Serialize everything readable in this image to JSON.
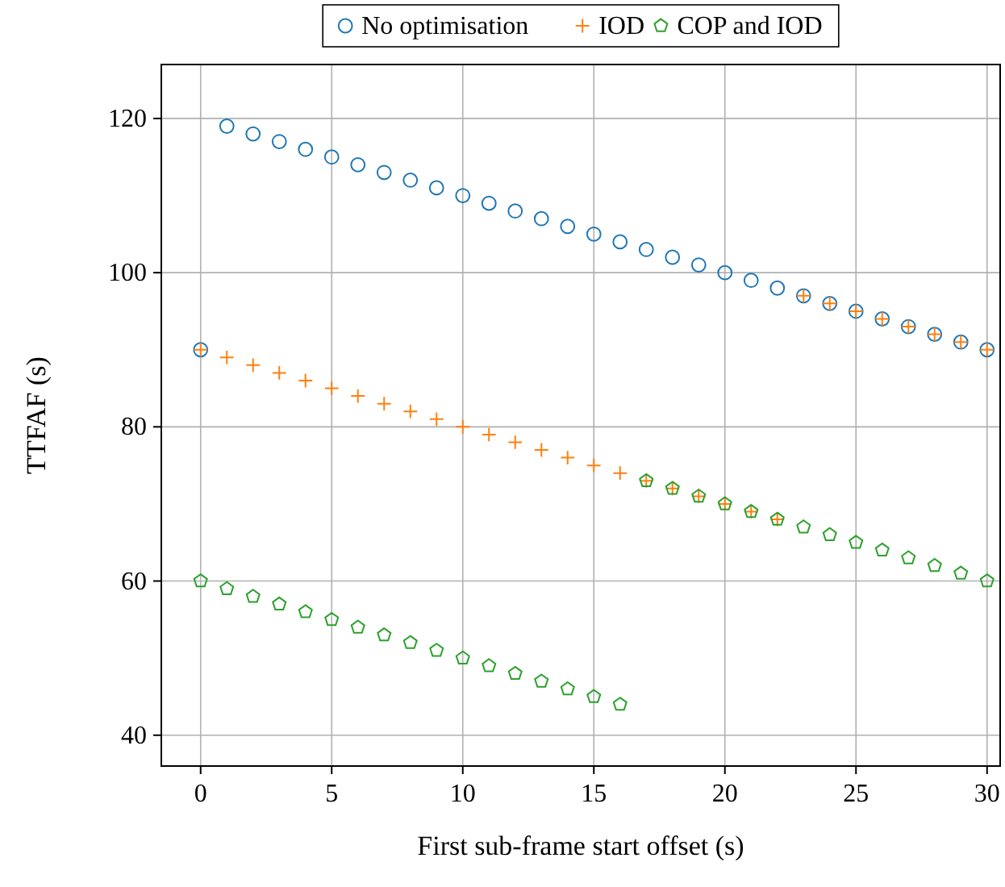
{
  "chart_data": {
    "type": "scatter",
    "xlabel": "First sub-frame start offset (s)",
    "ylabel": "TTFAF (s)",
    "x": [
      0,
      1,
      2,
      3,
      4,
      5,
      6,
      7,
      8,
      9,
      10,
      11,
      12,
      13,
      14,
      15,
      16,
      17,
      18,
      19,
      20,
      21,
      22,
      23,
      24,
      25,
      26,
      27,
      28,
      29,
      30
    ],
    "series": [
      {
        "name": "No optimisation",
        "color": "#1f77b4",
        "marker": "circle",
        "values": [
          90,
          119,
          118,
          117,
          116,
          115,
          114,
          113,
          112,
          111,
          110,
          109,
          108,
          107,
          106,
          105,
          104,
          103,
          102,
          101,
          100,
          99,
          98,
          97,
          96,
          95,
          94,
          93,
          92,
          91,
          90
        ]
      },
      {
        "name": "IOD",
        "color": "#ff7f0e",
        "marker": "cross",
        "values": [
          90,
          89,
          88,
          87,
          86,
          85,
          84,
          83,
          82,
          81,
          80,
          79,
          78,
          77,
          76,
          75,
          74,
          73,
          72,
          71,
          70,
          69,
          68,
          97,
          96,
          95,
          94,
          93,
          92,
          91,
          90
        ]
      },
      {
        "name": "COP and IOD",
        "color": "#2ca02c",
        "values": [
          60,
          59,
          58,
          57,
          56,
          55,
          54,
          53,
          52,
          51,
          50,
          49,
          48,
          47,
          46,
          45,
          44,
          73,
          72,
          71,
          70,
          69,
          68,
          67,
          66,
          65,
          64,
          63,
          62,
          61,
          60
        ]
      }
    ],
    "xlim": [
      -1.5,
      30.5
    ],
    "xticks": [
      0,
      5,
      10,
      15,
      20,
      25,
      30
    ],
    "ylim": [
      36,
      127
    ],
    "yticks": [
      40,
      60,
      80,
      100,
      120
    ],
    "grid": true,
    "legend": "top"
  }
}
